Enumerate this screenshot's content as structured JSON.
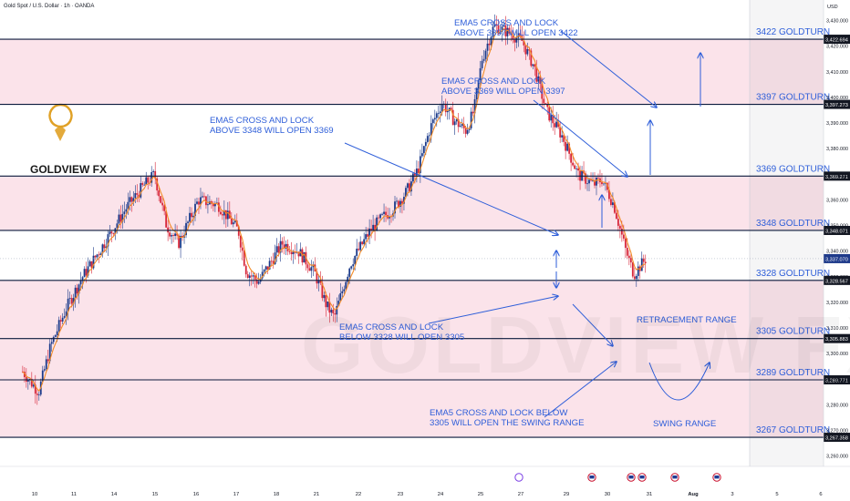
{
  "header": {
    "symbol": "Gold Spot / U.S. Dollar · 1h · OANDA",
    "currency": "USD"
  },
  "logo": {
    "text": "GOLDVIEW FX"
  },
  "watermark": "GOLDVIEW FX",
  "colors": {
    "zone": "#fbe3ea",
    "level_line": "#0b1a3c",
    "arrow": "#2e5ed9",
    "text": "#2e5ed9",
    "up": "#1b3a8a",
    "down": "#d7273a",
    "ema": "#f28c28",
    "logo": "#e0a126"
  },
  "chart_data": {
    "type": "candlestick",
    "y_axis": {
      "min": 3256,
      "max": 3438,
      "tick_labels": [
        "3,430.000",
        "3,420.000",
        "3,410.000",
        "3,400.000",
        "3,390.000",
        "3,380.000",
        "3,370.000",
        "3,360.000",
        "3,350.000",
        "3,340.000",
        "3,330.000",
        "3,320.000",
        "3,310.000",
        "3,300.000",
        "3,290.000",
        "3,280.000",
        "3,270.000",
        "3,260.000"
      ]
    },
    "x_axis": {
      "tick_labels": [
        "10",
        "11",
        "14",
        "15",
        "16",
        "17",
        "18",
        "21",
        "22",
        "23",
        "24",
        "25",
        "27",
        "29",
        "30",
        "31",
        "Aug",
        "3",
        "5",
        "6"
      ]
    },
    "price_path": [
      {
        "d": 9.7,
        "p": 3293
      },
      {
        "d": 10.1,
        "p": 3285
      },
      {
        "d": 10.4,
        "p": 3303
      },
      {
        "d": 10.8,
        "p": 3318
      },
      {
        "d": 11.2,
        "p": 3330
      },
      {
        "d": 11.7,
        "p": 3342
      },
      {
        "d": 12.3,
        "p": 3357
      },
      {
        "d": 12.7,
        "p": 3365
      },
      {
        "d": 13.0,
        "p": 3370
      },
      {
        "d": 13.3,
        "p": 3350
      },
      {
        "d": 13.6,
        "p": 3343
      },
      {
        "d": 14.1,
        "p": 3360
      },
      {
        "d": 14.6,
        "p": 3358
      },
      {
        "d": 15.1,
        "p": 3348
      },
      {
        "d": 15.3,
        "p": 3332
      },
      {
        "d": 15.6,
        "p": 3328
      },
      {
        "d": 16.2,
        "p": 3343
      },
      {
        "d": 16.6,
        "p": 3340
      },
      {
        "d": 17.0,
        "p": 3332
      },
      {
        "d": 17.3,
        "p": 3319
      },
      {
        "d": 17.5,
        "p": 3314
      },
      {
        "d": 17.9,
        "p": 3335
      },
      {
        "d": 18.4,
        "p": 3348
      },
      {
        "d": 18.7,
        "p": 3353
      },
      {
        "d": 19.0,
        "p": 3357
      },
      {
        "d": 19.3,
        "p": 3363
      },
      {
        "d": 19.6,
        "p": 3372
      },
      {
        "d": 19.9,
        "p": 3388
      },
      {
        "d": 20.2,
        "p": 3398
      },
      {
        "d": 20.5,
        "p": 3391
      },
      {
        "d": 20.8,
        "p": 3387
      },
      {
        "d": 21.0,
        "p": 3395
      },
      {
        "d": 21.2,
        "p": 3415
      },
      {
        "d": 21.5,
        "p": 3428
      },
      {
        "d": 21.9,
        "p": 3425
      },
      {
        "d": 22.2,
        "p": 3422
      },
      {
        "d": 22.5,
        "p": 3412
      },
      {
        "d": 22.8,
        "p": 3395
      },
      {
        "d": 23.2,
        "p": 3385
      },
      {
        "d": 23.6,
        "p": 3370
      },
      {
        "d": 24.0,
        "p": 3366
      },
      {
        "d": 24.2,
        "p": 3368
      },
      {
        "d": 24.5,
        "p": 3358
      },
      {
        "d": 24.8,
        "p": 3340
      },
      {
        "d": 25.0,
        "p": 3331
      },
      {
        "d": 25.1,
        "p": 3333
      },
      {
        "d": 25.3,
        "p": 3337
      }
    ],
    "ema_period": 5,
    "levels": [
      {
        "price": 3422.694,
        "label": "3422 GOLDTURN",
        "tag": "3,422.694"
      },
      {
        "price": 3397.273,
        "label": "3397 GOLDTURN",
        "tag": "3,397.273"
      },
      {
        "price": 3369.271,
        "label": "3369 GOLDTURN",
        "tag": "3,369.271"
      },
      {
        "price": 3348.071,
        "label": "3348 GOLDTURN",
        "tag": "3,348.071"
      },
      {
        "price": 3328.567,
        "label": "3328 GOLDTURN",
        "tag": "3,328.567"
      },
      {
        "price": 3305.883,
        "label": "3305 GOLDTURN",
        "tag": "3,305.883"
      },
      {
        "price": 3289.771,
        "label": "3289 GOLDTURN",
        "tag": "3,289.771"
      },
      {
        "price": 3267.358,
        "label": "3267 GOLDTURN",
        "tag": "3,267.358"
      }
    ],
    "last_price": {
      "price": 3337.07,
      "tag": "3,337.070"
    },
    "zones": [
      [
        3397.273,
        3422.694
      ],
      [
        3348.071,
        3369.271
      ],
      [
        3267.358,
        3328.567
      ]
    ],
    "annotations": [
      {
        "lines": [
          "EMA5 CROSS AND LOCK",
          "ABOVE 3397 WILL OPEN 3422"
        ]
      },
      {
        "lines": [
          "EMA5 CROSS AND LOCK",
          "ABOVE 3369 WILL OPEN 3397"
        ]
      },
      {
        "lines": [
          "EMA5 CROSS AND LOCK",
          "ABOVE 3348 WILL OPEN 3369"
        ]
      },
      {
        "lines": [
          "EMA5 CROSS AND LOCK",
          "BELOW 3328 WILL OPEN 3305"
        ]
      },
      {
        "lines": [
          "EMA5 CROSS AND LOCK BELOW",
          "3305 WILL OPEN THE SWING RANGE"
        ]
      },
      {
        "lines": [
          "RETRACEMENT RANGE"
        ]
      },
      {
        "lines": [
          "SWING RANGE"
        ]
      }
    ]
  }
}
